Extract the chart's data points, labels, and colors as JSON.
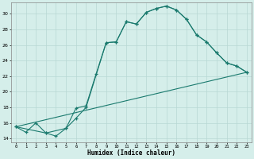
{
  "title": "",
  "xlabel": "Humidex (Indice chaleur)",
  "ylabel": "",
  "bg_color": "#d5eeea",
  "line_color": "#1a7a6e",
  "grid_color": "#b8d8d4",
  "xlim": [
    -0.5,
    23.5
  ],
  "ylim": [
    13.5,
    31.5
  ],
  "xticks": [
    0,
    1,
    2,
    3,
    4,
    5,
    6,
    7,
    8,
    9,
    10,
    11,
    12,
    13,
    14,
    15,
    16,
    17,
    18,
    19,
    20,
    21,
    22,
    23
  ],
  "yticks": [
    14,
    16,
    18,
    20,
    22,
    24,
    26,
    28,
    30
  ],
  "line1_x": [
    0,
    1,
    2,
    3,
    4,
    5,
    6,
    7,
    8,
    9,
    10,
    11,
    12,
    13,
    14,
    15,
    16,
    17,
    18,
    19,
    20,
    21,
    22,
    23
  ],
  "line1_y": [
    15.5,
    14.8,
    16.0,
    14.7,
    14.3,
    15.3,
    17.9,
    18.2,
    22.3,
    26.3,
    26.4,
    29.0,
    28.7,
    30.2,
    30.7,
    31.0,
    30.5,
    29.3,
    27.3,
    26.4,
    25.0,
    23.7,
    23.3,
    22.5
  ],
  "line2_x": [
    0,
    3,
    5,
    6,
    7,
    9,
    10,
    11,
    12,
    13,
    14,
    15,
    16,
    17,
    18,
    19,
    20,
    21,
    22,
    23
  ],
  "line2_y": [
    15.5,
    14.7,
    15.3,
    16.6,
    18.0,
    26.3,
    26.4,
    29.0,
    28.7,
    30.2,
    30.7,
    31.0,
    30.5,
    29.3,
    27.3,
    26.4,
    25.0,
    23.7,
    23.3,
    22.5
  ],
  "line3_x": [
    0,
    23
  ],
  "line3_y": [
    15.5,
    22.5
  ]
}
